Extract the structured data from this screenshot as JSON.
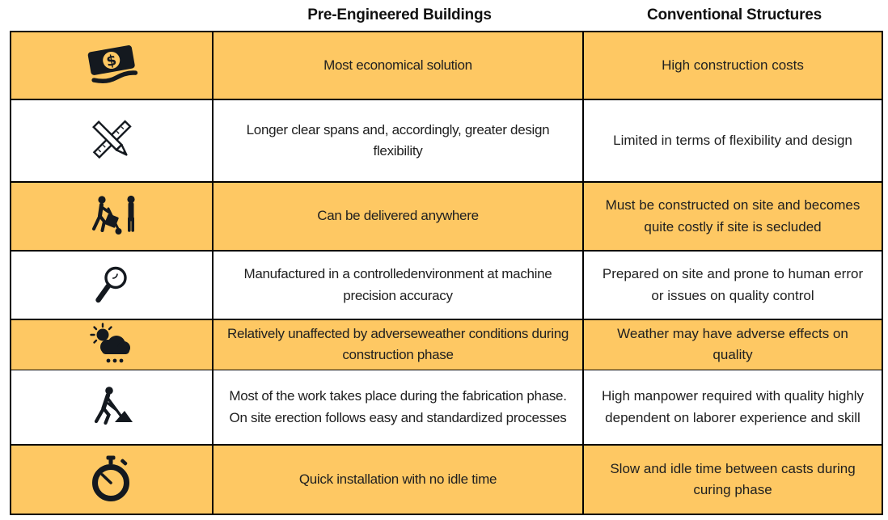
{
  "header": {
    "col_peb": "Pre-Engineered Buildings",
    "col_conv": "Conventional Structures"
  },
  "table": {
    "rows": [
      {
        "icon": "money-icon",
        "highlighted": true,
        "peb": "Most economical solution",
        "conv": "High construction costs"
      },
      {
        "icon": "ruler-pencil-icon",
        "highlighted": false,
        "peb": "Longer clear spans and, accordingly, greater design flexibility",
        "conv": "Limited in terms of flexibility and design"
      },
      {
        "icon": "delivery-icon",
        "highlighted": true,
        "peb": "Can be delivered anywhere",
        "conv": "Must be constructed on site and becomes quite costly if site is secluded"
      },
      {
        "icon": "magnifier-icon",
        "highlighted": false,
        "peb": "Manufactured in a controlledenvironment at machine precision accuracy",
        "conv": "Prepared on site and prone to human error or issues on quality control"
      },
      {
        "icon": "sun-rain-cloud-icon",
        "highlighted": true,
        "peb": "Relatively unaffected by adverseweather conditions during construction phase",
        "conv": "Weather may have adverse effects on quality"
      },
      {
        "icon": "construction-worker-icon",
        "highlighted": false,
        "peb": "Most of the work takes place during the fabrication phase. On site erection follows easy and standardized processes",
        "conv": "High manpower required with quality highly dependent on laborer experience and skill"
      },
      {
        "icon": "stopwatch-icon",
        "highlighted": true,
        "peb": "Quick installation with no idle time",
        "conv": "Slow and idle time between casts during curing phase"
      }
    ]
  },
  "colors": {
    "row_highlight": "#FEC863",
    "border": "#000000",
    "icon": "#14191f",
    "text": "#202020"
  }
}
